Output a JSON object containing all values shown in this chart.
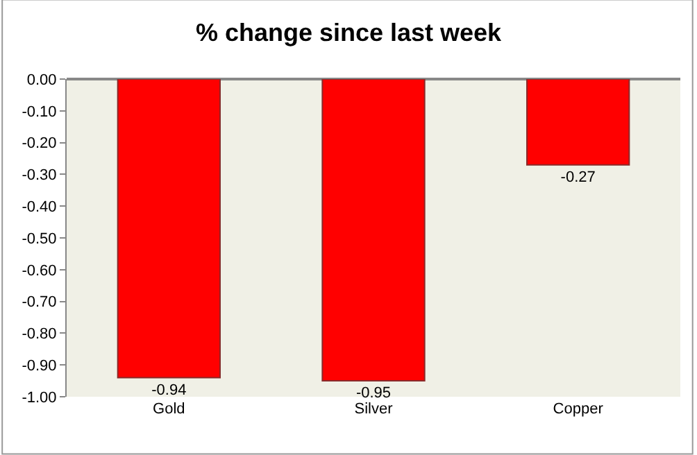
{
  "chart_data": {
    "type": "bar",
    "title": "% change since last week",
    "categories": [
      "Gold",
      "Silver",
      "Copper"
    ],
    "values": [
      -0.94,
      -0.95,
      -0.27
    ],
    "color": "#ff0000",
    "data_labels": true,
    "ylim": [
      -1.0,
      0.0
    ],
    "yticks": [
      {
        "value": 0,
        "label": "0.00"
      },
      {
        "value": -0.1,
        "label": "-0.10"
      },
      {
        "value": -0.2,
        "label": "-0.20"
      },
      {
        "value": -0.3,
        "label": "-0.30"
      },
      {
        "value": -0.4,
        "label": "-0.40"
      },
      {
        "value": -0.5,
        "label": "-0.50"
      },
      {
        "value": -0.6,
        "label": "-0.60"
      },
      {
        "value": -0.7,
        "label": "-0.70"
      },
      {
        "value": -0.8,
        "label": "-0.80"
      },
      {
        "value": -0.9,
        "label": "-0.90"
      },
      {
        "value": -1.0,
        "label": "-1.00"
      }
    ],
    "grid": false,
    "legend": false
  }
}
